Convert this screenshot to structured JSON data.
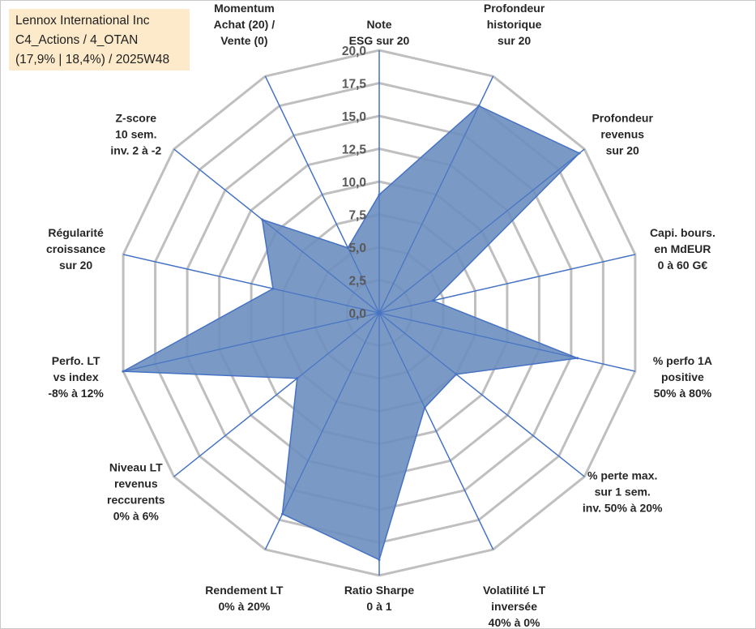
{
  "header": {
    "line1": "Lennox International Inc",
    "line2": "C4_Actions / 4_OTAN",
    "line3": "(17,9% | 18,4%) / 2025W48"
  },
  "chart_data": {
    "type": "radar",
    "title": "",
    "rmax": 20,
    "ticks": [
      "0,0",
      "2,5",
      "5,0",
      "7,5",
      "10,0",
      "12,5",
      "15,0",
      "17,5",
      "20,0"
    ],
    "axes": [
      {
        "label": [
          "Note",
          "ESG sur 20"
        ],
        "value": 9.0
      },
      {
        "label": [
          "Profondeur",
          "historique",
          "sur 20"
        ],
        "value": 17.5
      },
      {
        "label": [
          "Profondeur",
          "revenus",
          "sur 20"
        ],
        "value": 19.5
      },
      {
        "label": [
          "Capi. bours.",
          "en MdEUR",
          "0 à 60 G€"
        ],
        "value": 4.2
      },
      {
        "label": [
          "% perfo 1A",
          "positive",
          "50% à 80%"
        ],
        "value": 15.5
      },
      {
        "label": [
          "% perte max.",
          "sur 1 sem.",
          "inv. 50% à 20%"
        ],
        "value": 7.5
      },
      {
        "label": [
          "Volatilité LT",
          "inversée",
          "40% à 0%"
        ],
        "value": 8.0
      },
      {
        "label": [
          "Ratio Sharpe",
          "0 à 1"
        ],
        "value": 18.8
      },
      {
        "label": [
          "Rendement LT",
          "0% à 20%"
        ],
        "value": 17.0
      },
      {
        "label": [
          "Niveau LT",
          "revenus",
          "reccurents",
          "0% à 6%"
        ],
        "value": 8.0
      },
      {
        "label": [
          "Perfo. LT",
          "vs index",
          "-8% à 12%"
        ],
        "value": 20.0
      },
      {
        "label": [
          "Régularité",
          "croissance",
          "sur 20"
        ],
        "value": 8.3
      },
      {
        "label": [
          "Z-score",
          "10 sem.",
          "inv. 2 à -2"
        ],
        "value": 11.4
      },
      {
        "label": [
          "Momentum",
          "Achat (20) /",
          "Vente (0)"
        ],
        "value": 5.5
      }
    ],
    "colors": {
      "fill": "#6d8ebf",
      "stroke": "#4472c4",
      "grid": "#bfbfbf",
      "spoke": "#4472c4"
    }
  }
}
